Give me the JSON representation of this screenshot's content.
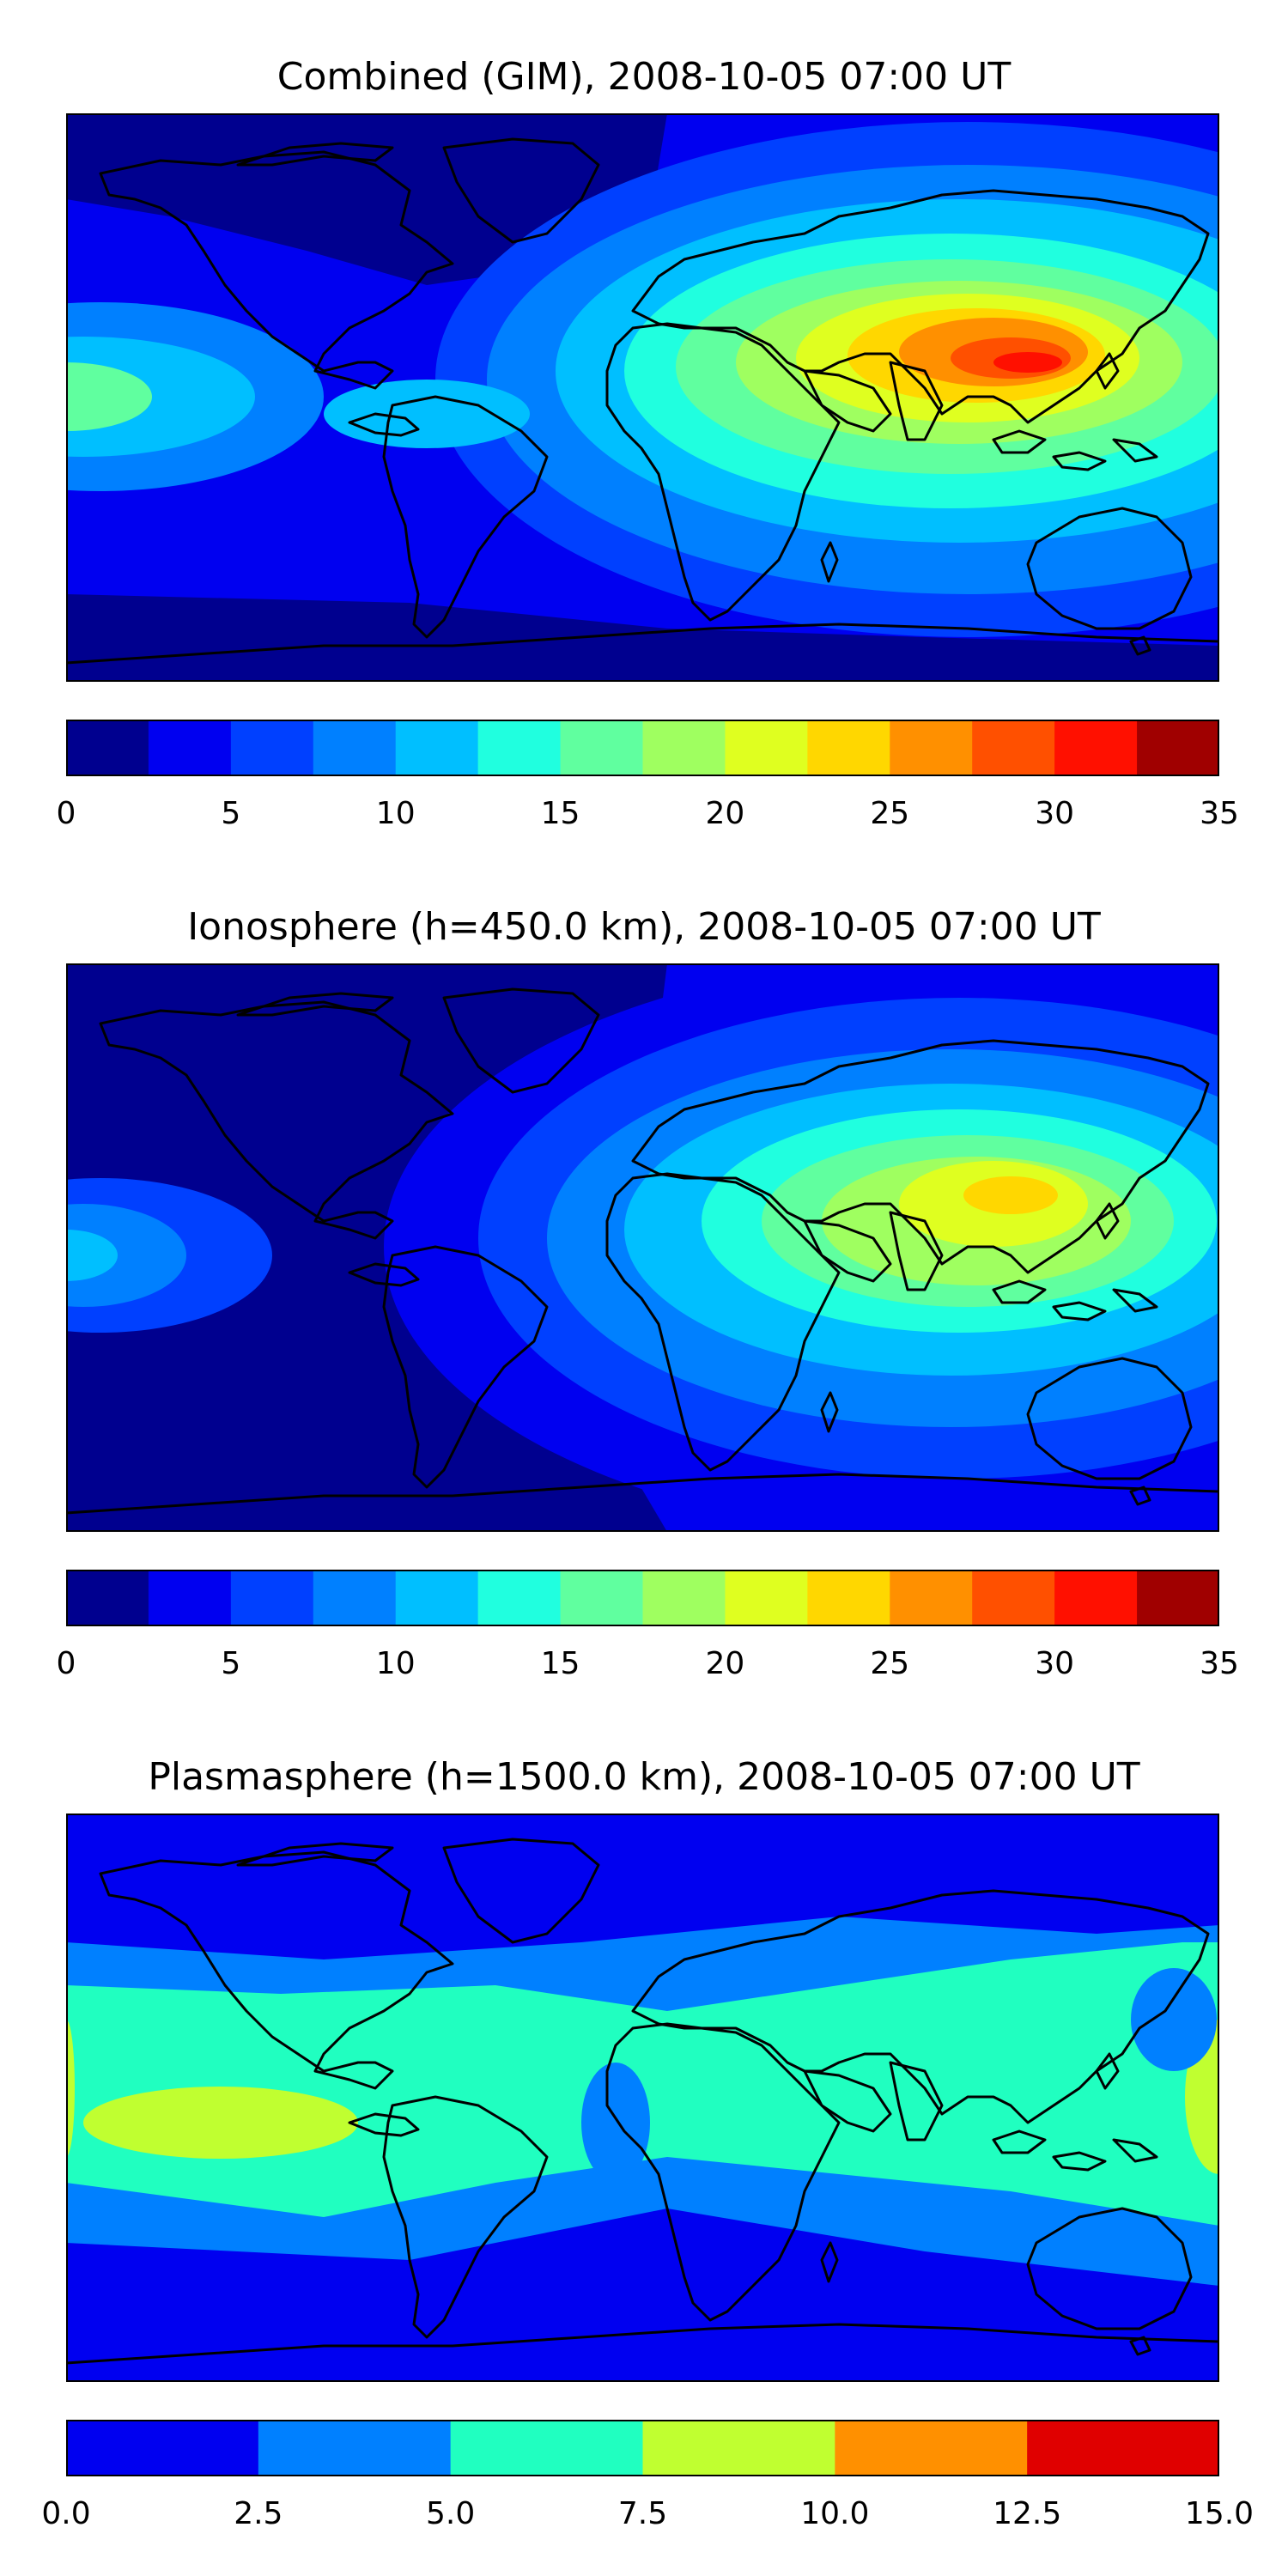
{
  "panels": [
    {
      "title": "Combined (GIM), 2008-10-05 07:00 UT",
      "colorbar": {
        "ticks": [
          "0",
          "5",
          "10",
          "15",
          "20",
          "25",
          "30",
          "35"
        ],
        "levels": [
          0,
          2.5,
          5,
          7.5,
          10,
          12.5,
          15,
          17.5,
          20,
          22.5,
          25,
          27.5,
          30,
          32.5,
          35
        ],
        "colors": [
          "#00008f",
          "#0000f0",
          "#0040ff",
          "#0080ff",
          "#00bfff",
          "#20ffdf",
          "#60ff9f",
          "#9fff60",
          "#dfff20",
          "#ffd700",
          "#ff9000",
          "#ff5000",
          "#ff1000",
          "#a00000"
        ]
      }
    },
    {
      "title": "Ionosphere  (h=450.0 km), 2008-10-05 07:00 UT",
      "colorbar": {
        "ticks": [
          "0",
          "5",
          "10",
          "15",
          "20",
          "25",
          "30",
          "35"
        ],
        "levels": [
          0,
          2.5,
          5,
          7.5,
          10,
          12.5,
          15,
          17.5,
          20,
          22.5,
          25,
          27.5,
          30,
          32.5,
          35
        ],
        "colors": [
          "#00008f",
          "#0000f0",
          "#0040ff",
          "#0080ff",
          "#00bfff",
          "#20ffdf",
          "#60ff9f",
          "#9fff60",
          "#dfff20",
          "#ffd700",
          "#ff9000",
          "#ff5000",
          "#ff1000",
          "#a00000"
        ]
      }
    },
    {
      "title": "Plasmasphere (h=1500.0 km), 2008-10-05 07:00 UT",
      "colorbar": {
        "ticks": [
          "0.0",
          "2.5",
          "5.0",
          "7.5",
          "10.0",
          "12.5",
          "15.0"
        ],
        "levels": [
          0,
          2.5,
          5,
          7.5,
          10,
          12.5,
          15
        ],
        "colors": [
          "#0000f0",
          "#0080ff",
          "#20ffc0",
          "#c0ff30",
          "#ff9000",
          "#e00000"
        ]
      }
    }
  ],
  "chart_data": [
    {
      "type": "heatmap",
      "title": "Combined (GIM), 2008-10-05 07:00 UT",
      "colorbar_range": [
        0,
        35
      ],
      "colorbar_step": 2.5,
      "colorbar_ticks": [
        0,
        5,
        10,
        15,
        20,
        25,
        30,
        35
      ],
      "peak_region": "Southeast Asia / Indian Ocean, 27.5–32.5",
      "background": "0–5 over the Americas and poles"
    },
    {
      "type": "heatmap",
      "title": "Ionosphere  (h=450.0 km), 2008-10-05 07:00 UT",
      "colorbar_range": [
        0,
        35
      ],
      "colorbar_step": 2.5,
      "colorbar_ticks": [
        0,
        5,
        10,
        15,
        20,
        25,
        30,
        35
      ],
      "peak_region": "Southeast Asia, 22.5–27.5",
      "background": "0–2.5 over the Americas and poles"
    },
    {
      "type": "heatmap",
      "title": "Plasmasphere (h=1500.0 km), 2008-10-05 07:00 UT",
      "colorbar_range": [
        0,
        15
      ],
      "colorbar_step": 2.5,
      "colorbar_ticks": [
        0.0,
        2.5,
        5.0,
        7.5,
        10.0,
        12.5,
        15.0
      ],
      "peak_region": "equatorial Pacific, 7.5–10.0",
      "background": "0–2.5 at high latitudes"
    }
  ]
}
